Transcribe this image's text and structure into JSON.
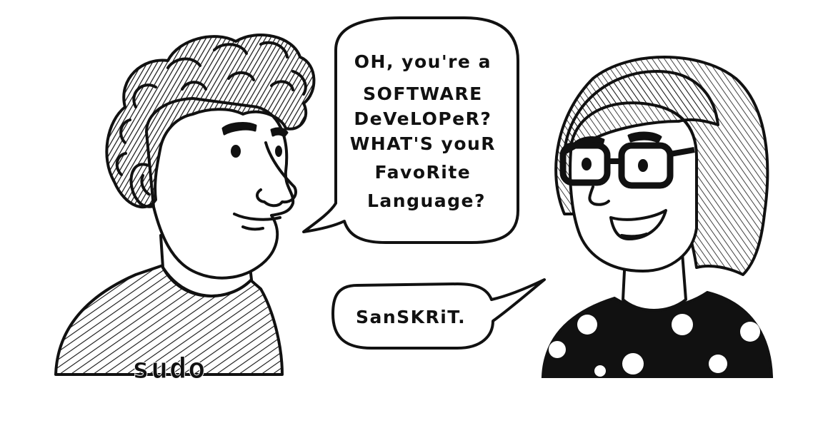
{
  "comic": {
    "man_speech": [
      "OH, you're a",
      "SOFTWARE",
      "DeVeLOPeR?",
      "WHAT'S youR",
      "FavoRite",
      "Language?"
    ],
    "woman_speech": "SanSKRiT.",
    "shirt_text": "sudo"
  },
  "colors": {
    "ink": "#111111",
    "paper": "#ffffff"
  },
  "characters": {
    "left": "man-with-curly-hair",
    "right": "woman-with-glasses"
  }
}
